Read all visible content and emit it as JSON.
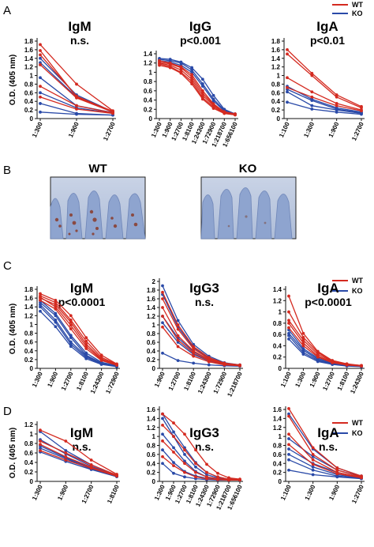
{
  "panel_labels": {
    "A": "A",
    "B": "B",
    "C": "C",
    "D": "D"
  },
  "legend": {
    "wt": "WT",
    "ko": "KO",
    "wt_color": "#d42a20",
    "ko_color": "#2a4aa8"
  },
  "y_axis_label": "O.D. (405 nm)",
  "panel_b": {
    "wt_label": "WT",
    "ko_label": "KO"
  },
  "chart_data": [
    {
      "type": "line",
      "panel": "A",
      "title": "IgM",
      "stat": "n.s.",
      "ylabel": "O.D. (405 nm)",
      "ylim": [
        0,
        1.8
      ],
      "yticks": [
        0,
        0.2,
        0.4,
        0.6,
        0.8,
        1,
        1.2,
        1.4,
        1.6,
        1.8
      ],
      "categories": [
        "1:300",
        "1:900",
        "1:2700"
      ],
      "series": [
        {
          "group": "WT",
          "values": [
            1.72,
            0.8,
            0.18
          ]
        },
        {
          "group": "WT",
          "values": [
            1.58,
            0.5,
            0.17
          ]
        },
        {
          "group": "WT",
          "values": [
            1.48,
            0.52,
            0.16
          ]
        },
        {
          "group": "WT",
          "values": [
            1.25,
            0.48,
            0.15
          ]
        },
        {
          "group": "WT",
          "values": [
            0.75,
            0.3,
            0.13
          ]
        },
        {
          "group": "WT",
          "values": [
            0.5,
            0.22,
            0.12
          ]
        },
        {
          "group": "KO",
          "values": [
            1.4,
            0.55,
            0.16
          ]
        },
        {
          "group": "KO",
          "values": [
            1.3,
            0.5,
            0.15
          ]
        },
        {
          "group": "KO",
          "values": [
            0.95,
            0.3,
            0.14
          ]
        },
        {
          "group": "KO",
          "values": [
            0.6,
            0.25,
            0.12
          ]
        },
        {
          "group": "KO",
          "values": [
            0.35,
            0.12,
            0.08
          ]
        },
        {
          "group": "KO",
          "values": [
            0.15,
            0.1,
            0.08
          ]
        }
      ]
    },
    {
      "type": "line",
      "panel": "A",
      "title": "IgG",
      "stat": "p<0.001",
      "ylim": [
        0,
        1.4
      ],
      "yticks": [
        0,
        0.2,
        0.4,
        0.6,
        0.8,
        1,
        1.2,
        1.4
      ],
      "categories": [
        "1:300",
        "1:900",
        "1:2700",
        "1:8100",
        "1:24300",
        "1:72900",
        "1:218700",
        "1:656100"
      ],
      "series": [
        {
          "group": "WT",
          "values": [
            1.22,
            1.18,
            1.1,
            0.9,
            0.55,
            0.3,
            0.15,
            0.1
          ]
        },
        {
          "group": "WT",
          "values": [
            1.2,
            1.15,
            1.05,
            0.85,
            0.5,
            0.28,
            0.13,
            0.09
          ]
        },
        {
          "group": "WT",
          "values": [
            1.25,
            1.2,
            1.12,
            0.95,
            0.6,
            0.32,
            0.14,
            0.1
          ]
        },
        {
          "group": "WT",
          "values": [
            1.18,
            1.12,
            1.0,
            0.8,
            0.45,
            0.25,
            0.12,
            0.08
          ]
        },
        {
          "group": "WT",
          "values": [
            1.15,
            1.1,
            0.98,
            0.75,
            0.42,
            0.22,
            0.11,
            0.08
          ]
        },
        {
          "group": "KO",
          "values": [
            1.3,
            1.28,
            1.22,
            1.1,
            0.85,
            0.5,
            0.2,
            0.1
          ]
        },
        {
          "group": "KO",
          "values": [
            1.28,
            1.25,
            1.2,
            1.05,
            0.75,
            0.42,
            0.18,
            0.1
          ]
        },
        {
          "group": "KO",
          "values": [
            1.25,
            1.22,
            1.15,
            1.0,
            0.7,
            0.38,
            0.16,
            0.09
          ]
        }
      ]
    },
    {
      "type": "line",
      "panel": "A",
      "title": "IgA",
      "stat": "p<0.01",
      "ylim": [
        0,
        1.8
      ],
      "yticks": [
        0,
        0.2,
        0.4,
        0.6,
        0.8,
        1,
        1.2,
        1.4,
        1.6,
        1.8
      ],
      "categories": [
        "1:100",
        "1:300",
        "1:900",
        "1:2700"
      ],
      "series": [
        {
          "group": "WT",
          "values": [
            1.6,
            1.05,
            0.55,
            0.28
          ]
        },
        {
          "group": "WT",
          "values": [
            1.5,
            1.0,
            0.5,
            0.25
          ]
        },
        {
          "group": "WT",
          "values": [
            0.95,
            0.62,
            0.35,
            0.2
          ]
        },
        {
          "group": "WT",
          "values": [
            0.72,
            0.5,
            0.3,
            0.18
          ]
        },
        {
          "group": "KO",
          "values": [
            0.75,
            0.45,
            0.25,
            0.15
          ]
        },
        {
          "group": "KO",
          "values": [
            0.68,
            0.42,
            0.22,
            0.13
          ]
        },
        {
          "group": "KO",
          "values": [
            0.62,
            0.3,
            0.2,
            0.12
          ]
        },
        {
          "group": "KO",
          "values": [
            0.38,
            0.22,
            0.15,
            0.1
          ]
        }
      ]
    },
    {
      "type": "line",
      "panel": "C",
      "title": "IgM",
      "stat": "p<0.0001",
      "ylabel": "O.D. (405 nm)",
      "ylim": [
        0,
        1.8
      ],
      "yticks": [
        0,
        0.2,
        0.4,
        0.6,
        0.8,
        1,
        1.2,
        1.4,
        1.6,
        1.8
      ],
      "categories": [
        "1:300",
        "1:900",
        "1:2700",
        "1:8100",
        "1:24300",
        "1:72900"
      ],
      "series": [
        {
          "group": "WT",
          "values": [
            1.7,
            1.55,
            1.2,
            0.7,
            0.3,
            0.1
          ]
        },
        {
          "group": "WT",
          "values": [
            1.65,
            1.5,
            1.1,
            0.62,
            0.25,
            0.09
          ]
        },
        {
          "group": "WT",
          "values": [
            1.6,
            1.45,
            1.05,
            0.55,
            0.22,
            0.08
          ]
        },
        {
          "group": "WT",
          "values": [
            1.62,
            1.4,
            0.98,
            0.5,
            0.2,
            0.08
          ]
        },
        {
          "group": "WT",
          "values": [
            1.55,
            1.35,
            0.9,
            0.45,
            0.18,
            0.07
          ]
        },
        {
          "group": "KO",
          "values": [
            1.55,
            1.25,
            0.75,
            0.35,
            0.14,
            0.06
          ]
        },
        {
          "group": "KO",
          "values": [
            1.5,
            1.2,
            0.7,
            0.3,
            0.12,
            0.05
          ]
        },
        {
          "group": "KO",
          "values": [
            1.45,
            1.1,
            0.6,
            0.28,
            0.1,
            0.05
          ]
        },
        {
          "group": "KO",
          "values": [
            1.4,
            1.05,
            0.55,
            0.25,
            0.1,
            0.05
          ]
        },
        {
          "group": "KO",
          "values": [
            1.3,
            0.95,
            0.5,
            0.22,
            0.09,
            0.04
          ]
        }
      ]
    },
    {
      "type": "line",
      "panel": "C",
      "title": "IgG3",
      "stat": "n.s.",
      "ylim": [
        0,
        2.0
      ],
      "yticks": [
        0,
        0.2,
        0.4,
        0.6,
        0.8,
        1,
        1.2,
        1.4,
        1.6,
        1.8,
        2.0
      ],
      "categories": [
        "1:900",
        "1:2700",
        "1:8100",
        "1:24300",
        "1:72900",
        "1:218700"
      ],
      "series": [
        {
          "group": "WT",
          "values": [
            1.75,
            1.0,
            0.5,
            0.25,
            0.12,
            0.08
          ]
        },
        {
          "group": "WT",
          "values": [
            1.6,
            0.9,
            0.45,
            0.22,
            0.11,
            0.07
          ]
        },
        {
          "group": "WT",
          "values": [
            1.4,
            0.75,
            0.4,
            0.2,
            0.1,
            0.07
          ]
        },
        {
          "group": "WT",
          "values": [
            1.2,
            0.65,
            0.35,
            0.18,
            0.1,
            0.06
          ]
        },
        {
          "group": "WT",
          "values": [
            0.95,
            0.5,
            0.28,
            0.15,
            0.08,
            0.06
          ]
        },
        {
          "group": "KO",
          "values": [
            1.9,
            1.1,
            0.55,
            0.28,
            0.13,
            0.08
          ]
        },
        {
          "group": "KO",
          "values": [
            1.7,
            0.95,
            0.48,
            0.24,
            0.12,
            0.07
          ]
        },
        {
          "group": "KO",
          "values": [
            1.2,
            0.7,
            0.38,
            0.2,
            0.1,
            0.06
          ]
        },
        {
          "group": "KO",
          "values": [
            1.05,
            0.6,
            0.32,
            0.17,
            0.09,
            0.06
          ]
        },
        {
          "group": "KO",
          "values": [
            0.35,
            0.18,
            0.12,
            0.08,
            0.06,
            0.05
          ]
        }
      ]
    },
    {
      "type": "line",
      "panel": "C",
      "title": "IgA",
      "stat": "p<0.0001",
      "ylim": [
        0,
        1.4
      ],
      "yticks": [
        0,
        0.2,
        0.4,
        0.6,
        0.8,
        1,
        1.2,
        1.4
      ],
      "categories": [
        "1:100",
        "1:300",
        "1:900",
        "1:2700",
        "1:8100",
        "1:24300"
      ],
      "series": [
        {
          "group": "WT",
          "values": [
            1.28,
            0.62,
            0.3,
            0.14,
            0.08,
            0.05
          ]
        },
        {
          "group": "WT",
          "values": [
            1.0,
            0.55,
            0.28,
            0.13,
            0.07,
            0.05
          ]
        },
        {
          "group": "WT",
          "values": [
            0.85,
            0.5,
            0.25,
            0.12,
            0.07,
            0.05
          ]
        },
        {
          "group": "WT",
          "values": [
            0.8,
            0.45,
            0.22,
            0.11,
            0.06,
            0.04
          ]
        },
        {
          "group": "WT",
          "values": [
            0.72,
            0.4,
            0.2,
            0.1,
            0.06,
            0.04
          ]
        },
        {
          "group": "KO",
          "values": [
            0.68,
            0.35,
            0.18,
            0.09,
            0.05,
            0.04
          ]
        },
        {
          "group": "KO",
          "values": [
            0.62,
            0.32,
            0.16,
            0.08,
            0.05,
            0.04
          ]
        },
        {
          "group": "KO",
          "values": [
            0.58,
            0.28,
            0.14,
            0.07,
            0.05,
            0.04
          ]
        },
        {
          "group": "KO",
          "values": [
            0.52,
            0.25,
            0.12,
            0.07,
            0.04,
            0.03
          ]
        }
      ]
    },
    {
      "type": "line",
      "panel": "D",
      "title": "IgM",
      "stat": "n.s.",
      "ylabel": "O.D. (405 nm)",
      "ylim": [
        0,
        1.2
      ],
      "yticks": [
        0,
        0.2,
        0.4,
        0.6,
        0.8,
        1,
        1.2
      ],
      "categories": [
        "1:300",
        "1:900",
        "1:2700",
        "1:8100"
      ],
      "series": [
        {
          "group": "WT",
          "values": [
            1.08,
            0.85,
            0.45,
            0.15
          ]
        },
        {
          "group": "WT",
          "values": [
            0.85,
            0.6,
            0.35,
            0.13
          ]
        },
        {
          "group": "WT",
          "values": [
            0.78,
            0.52,
            0.3,
            0.12
          ]
        },
        {
          "group": "WT",
          "values": [
            0.65,
            0.45,
            0.28,
            0.11
          ]
        },
        {
          "group": "KO",
          "values": [
            1.05,
            0.65,
            0.35,
            0.13
          ]
        },
        {
          "group": "KO",
          "values": [
            0.88,
            0.58,
            0.32,
            0.12
          ]
        },
        {
          "group": "KO",
          "values": [
            0.75,
            0.5,
            0.28,
            0.11
          ]
        },
        {
          "group": "KO",
          "values": [
            0.7,
            0.48,
            0.26,
            0.1
          ]
        },
        {
          "group": "KO",
          "values": [
            0.62,
            0.42,
            0.25,
            0.1
          ]
        }
      ]
    },
    {
      "type": "line",
      "panel": "D",
      "title": "IgG3",
      "stat": "n.s.",
      "ylim": [
        0,
        1.6
      ],
      "yticks": [
        0,
        0.2,
        0.4,
        0.6,
        0.8,
        1,
        1.2,
        1.4,
        1.6
      ],
      "categories": [
        "1:300",
        "1:900",
        "1:2700",
        "1:8100",
        "1:24300",
        "1:72900",
        "1:218700",
        "1:656100"
      ],
      "series": [
        {
          "group": "WT",
          "values": [
            1.5,
            1.3,
            1.05,
            0.7,
            0.38,
            0.18,
            0.08,
            0.05
          ]
        },
        {
          "group": "WT",
          "values": [
            1.25,
            1.0,
            0.7,
            0.4,
            0.2,
            0.1,
            0.05,
            0.04
          ]
        },
        {
          "group": "WT",
          "values": [
            0.9,
            0.65,
            0.4,
            0.2,
            0.1,
            0.06,
            0.04,
            0.03
          ]
        },
        {
          "group": "WT",
          "values": [
            0.55,
            0.35,
            0.2,
            0.1,
            0.06,
            0.04,
            0.03,
            0.03
          ]
        },
        {
          "group": "KO",
          "values": [
            1.5,
            1.1,
            0.75,
            0.42,
            0.2,
            0.1,
            0.05,
            0.04
          ]
        },
        {
          "group": "KO",
          "values": [
            1.4,
            1.0,
            0.6,
            0.32,
            0.15,
            0.08,
            0.05,
            0.04
          ]
        },
        {
          "group": "KO",
          "values": [
            1.05,
            0.75,
            0.45,
            0.22,
            0.1,
            0.06,
            0.04,
            0.03
          ]
        },
        {
          "group": "KO",
          "values": [
            0.7,
            0.42,
            0.22,
            0.12,
            0.07,
            0.05,
            0.04,
            0.03
          ]
        },
        {
          "group": "KO",
          "values": [
            0.4,
            0.18,
            0.1,
            0.06,
            0.04,
            0.03,
            0.03,
            0.03
          ]
        }
      ]
    },
    {
      "type": "line",
      "panel": "D",
      "title": "IgA",
      "stat": "n.s.",
      "ylim": [
        0,
        1.6
      ],
      "yticks": [
        0,
        0.2,
        0.4,
        0.6,
        0.8,
        1,
        1.2,
        1.4,
        1.6
      ],
      "categories": [
        "1:100",
        "1:300",
        "1:900",
        "1:2700"
      ],
      "series": [
        {
          "group": "WT",
          "values": [
            1.62,
            0.75,
            0.3,
            0.12
          ]
        },
        {
          "group": "WT",
          "values": [
            1.45,
            0.6,
            0.25,
            0.1
          ]
        },
        {
          "group": "WT",
          "values": [
            1.05,
            0.48,
            0.2,
            0.09
          ]
        },
        {
          "group": "WT",
          "values": [
            0.82,
            0.38,
            0.17,
            0.08
          ]
        },
        {
          "group": "KO",
          "values": [
            1.5,
            0.72,
            0.3,
            0.12
          ]
        },
        {
          "group": "KO",
          "values": [
            0.95,
            0.55,
            0.25,
            0.11
          ]
        },
        {
          "group": "KO",
          "values": [
            0.72,
            0.4,
            0.2,
            0.09
          ]
        },
        {
          "group": "KO",
          "values": [
            0.6,
            0.32,
            0.15,
            0.08
          ]
        },
        {
          "group": "KO",
          "values": [
            0.48,
            0.25,
            0.12,
            0.07
          ]
        },
        {
          "group": "KO",
          "values": [
            0.25,
            0.15,
            0.1,
            0.06
          ]
        }
      ]
    }
  ]
}
